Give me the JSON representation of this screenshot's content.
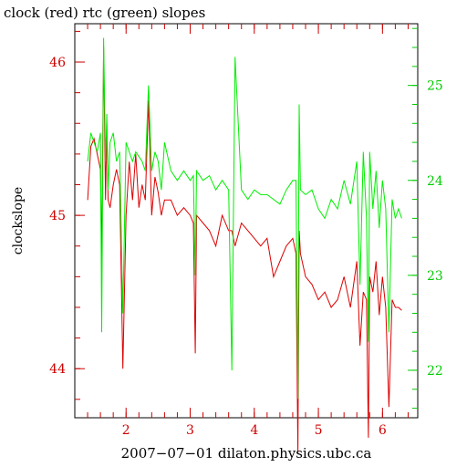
{
  "chart_data": {
    "type": "line",
    "title": "clock (red) rtc (green) slopes",
    "xlabel": "2007−07−01 dilaton.physics.ubc.ca",
    "ylabel": "clockslope",
    "xlim": [
      1.2,
      6.55
    ],
    "ylim_left": [
      43.68,
      46.25
    ],
    "ylim_right": [
      21.5,
      25.65
    ],
    "x_ticks": [
      "2",
      "3",
      "4",
      "5",
      "6"
    ],
    "y_left_ticks": [
      "44",
      "45",
      "46"
    ],
    "y_right_ticks": [
      "22",
      "23",
      "24",
      "25"
    ],
    "colors": {
      "clock": "#dd0000",
      "rtc": "#00ee00",
      "axis_left": "#cc0000",
      "axis_right": "#00cc00"
    },
    "series": [
      {
        "name": "clock",
        "axis": "left",
        "x": [
          1.4,
          1.45,
          1.5,
          1.55,
          1.6,
          1.62,
          1.65,
          1.68,
          1.7,
          1.72,
          1.75,
          1.8,
          1.85,
          1.9,
          1.95,
          2.0,
          2.05,
          2.1,
          2.15,
          2.2,
          2.25,
          2.3,
          2.35,
          2.4,
          2.45,
          2.5,
          2.55,
          2.6,
          2.7,
          2.8,
          2.9,
          3.0,
          3.05,
          3.08,
          3.1,
          3.2,
          3.3,
          3.4,
          3.5,
          3.6,
          3.65,
          3.7,
          3.8,
          3.9,
          4.0,
          4.1,
          4.2,
          4.3,
          4.4,
          4.5,
          4.6,
          4.65,
          4.68,
          4.7,
          4.72,
          4.8,
          4.9,
          5.0,
          5.1,
          5.2,
          5.3,
          5.4,
          5.5,
          5.6,
          5.65,
          5.7,
          5.75,
          5.78,
          5.8,
          5.85,
          5.9,
          5.95,
          6.0,
          6.05,
          6.1,
          6.15,
          6.2,
          6.25,
          6.3
        ],
        "y": [
          45.1,
          45.45,
          45.5,
          45.4,
          45.3,
          44.7,
          46.1,
          45.1,
          45.6,
          45.1,
          45.05,
          45.2,
          45.3,
          45.2,
          44.0,
          45.0,
          45.35,
          45.1,
          45.4,
          45.05,
          45.2,
          45.1,
          45.75,
          45.0,
          45.25,
          45.15,
          45.0,
          45.1,
          45.1,
          45.0,
          45.05,
          45.0,
          44.95,
          44.1,
          45.0,
          44.95,
          44.9,
          44.8,
          45.0,
          44.9,
          44.9,
          44.8,
          44.95,
          44.9,
          44.85,
          44.8,
          44.85,
          44.6,
          44.7,
          44.8,
          44.85,
          44.75,
          43.45,
          44.9,
          44.75,
          44.6,
          44.55,
          44.45,
          44.5,
          44.4,
          44.45,
          44.6,
          44.4,
          44.7,
          44.15,
          44.5,
          44.45,
          43.55,
          44.6,
          44.5,
          44.7,
          44.35,
          44.6,
          44.4,
          43.75,
          44.45,
          44.4,
          44.4,
          44.38
        ]
      },
      {
        "name": "rtc",
        "axis": "right",
        "x": [
          1.4,
          1.45,
          1.5,
          1.55,
          1.6,
          1.62,
          1.65,
          1.68,
          1.7,
          1.72,
          1.75,
          1.8,
          1.85,
          1.9,
          1.95,
          2.0,
          2.05,
          2.1,
          2.15,
          2.2,
          2.25,
          2.3,
          2.35,
          2.4,
          2.45,
          2.5,
          2.55,
          2.6,
          2.7,
          2.8,
          2.9,
          3.0,
          3.05,
          3.08,
          3.1,
          3.2,
          3.3,
          3.4,
          3.5,
          3.6,
          3.65,
          3.7,
          3.8,
          3.9,
          4.0,
          4.1,
          4.2,
          4.3,
          4.4,
          4.5,
          4.6,
          4.65,
          4.68,
          4.7,
          4.72,
          4.8,
          4.9,
          5.0,
          5.1,
          5.2,
          5.3,
          5.4,
          5.5,
          5.6,
          5.65,
          5.7,
          5.75,
          5.78,
          5.8,
          5.85,
          5.9,
          5.95,
          6.0,
          6.05,
          6.1,
          6.15,
          6.2,
          6.25,
          6.3
        ],
        "y": [
          24.2,
          24.5,
          24.4,
          24.3,
          24.5,
          22.4,
          25.5,
          24.2,
          24.7,
          23.9,
          24.4,
          24.5,
          24.2,
          24.3,
          22.6,
          24.4,
          24.3,
          24.2,
          24.3,
          24.25,
          24.2,
          24.1,
          25.0,
          24.1,
          24.3,
          24.2,
          23.9,
          24.4,
          24.1,
          24.0,
          24.1,
          24.0,
          24.05,
          23.0,
          24.1,
          24.0,
          24.05,
          23.9,
          24.0,
          23.9,
          22.0,
          25.3,
          23.9,
          23.8,
          23.9,
          23.85,
          23.85,
          23.8,
          23.75,
          23.9,
          24.0,
          24.0,
          21.7,
          24.8,
          23.9,
          23.85,
          23.9,
          23.7,
          23.6,
          23.8,
          23.7,
          24.0,
          23.75,
          24.2,
          22.9,
          24.3,
          23.6,
          22.3,
          24.3,
          23.7,
          24.1,
          23.5,
          24.0,
          23.7,
          22.4,
          23.8,
          23.6,
          23.7,
          23.6
        ]
      }
    ]
  }
}
